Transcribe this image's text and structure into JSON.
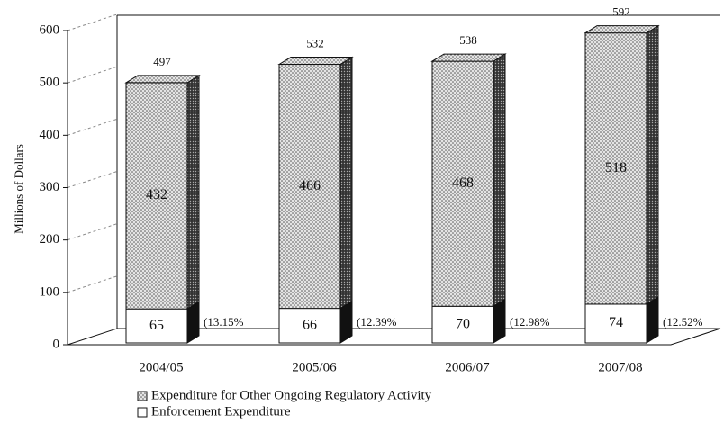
{
  "chart_data": {
    "type": "bar",
    "stacked": true,
    "y_label": "Millions of Dollars",
    "categories": [
      "2004/05",
      "2005/06",
      "2006/07",
      "2007/08"
    ],
    "series": [
      {
        "name": "Enforcement Expenditure",
        "color": "#ffffff",
        "values": [
          65,
          66,
          70,
          74
        ]
      },
      {
        "name": "Expenditure for Other Ongoing Regulatory Activity",
        "color": "#e4e4e4",
        "values": [
          432,
          466,
          468,
          518
        ]
      }
    ],
    "totals": [
      497,
      532,
      538,
      592
    ],
    "annotations": [
      "(13.15%",
      "(12.39%",
      "(12.98%",
      "(12.52%"
    ],
    "ylim": [
      0,
      600
    ],
    "yticks": [
      0,
      100,
      200,
      300,
      400,
      500,
      600
    ],
    "grid": true
  }
}
